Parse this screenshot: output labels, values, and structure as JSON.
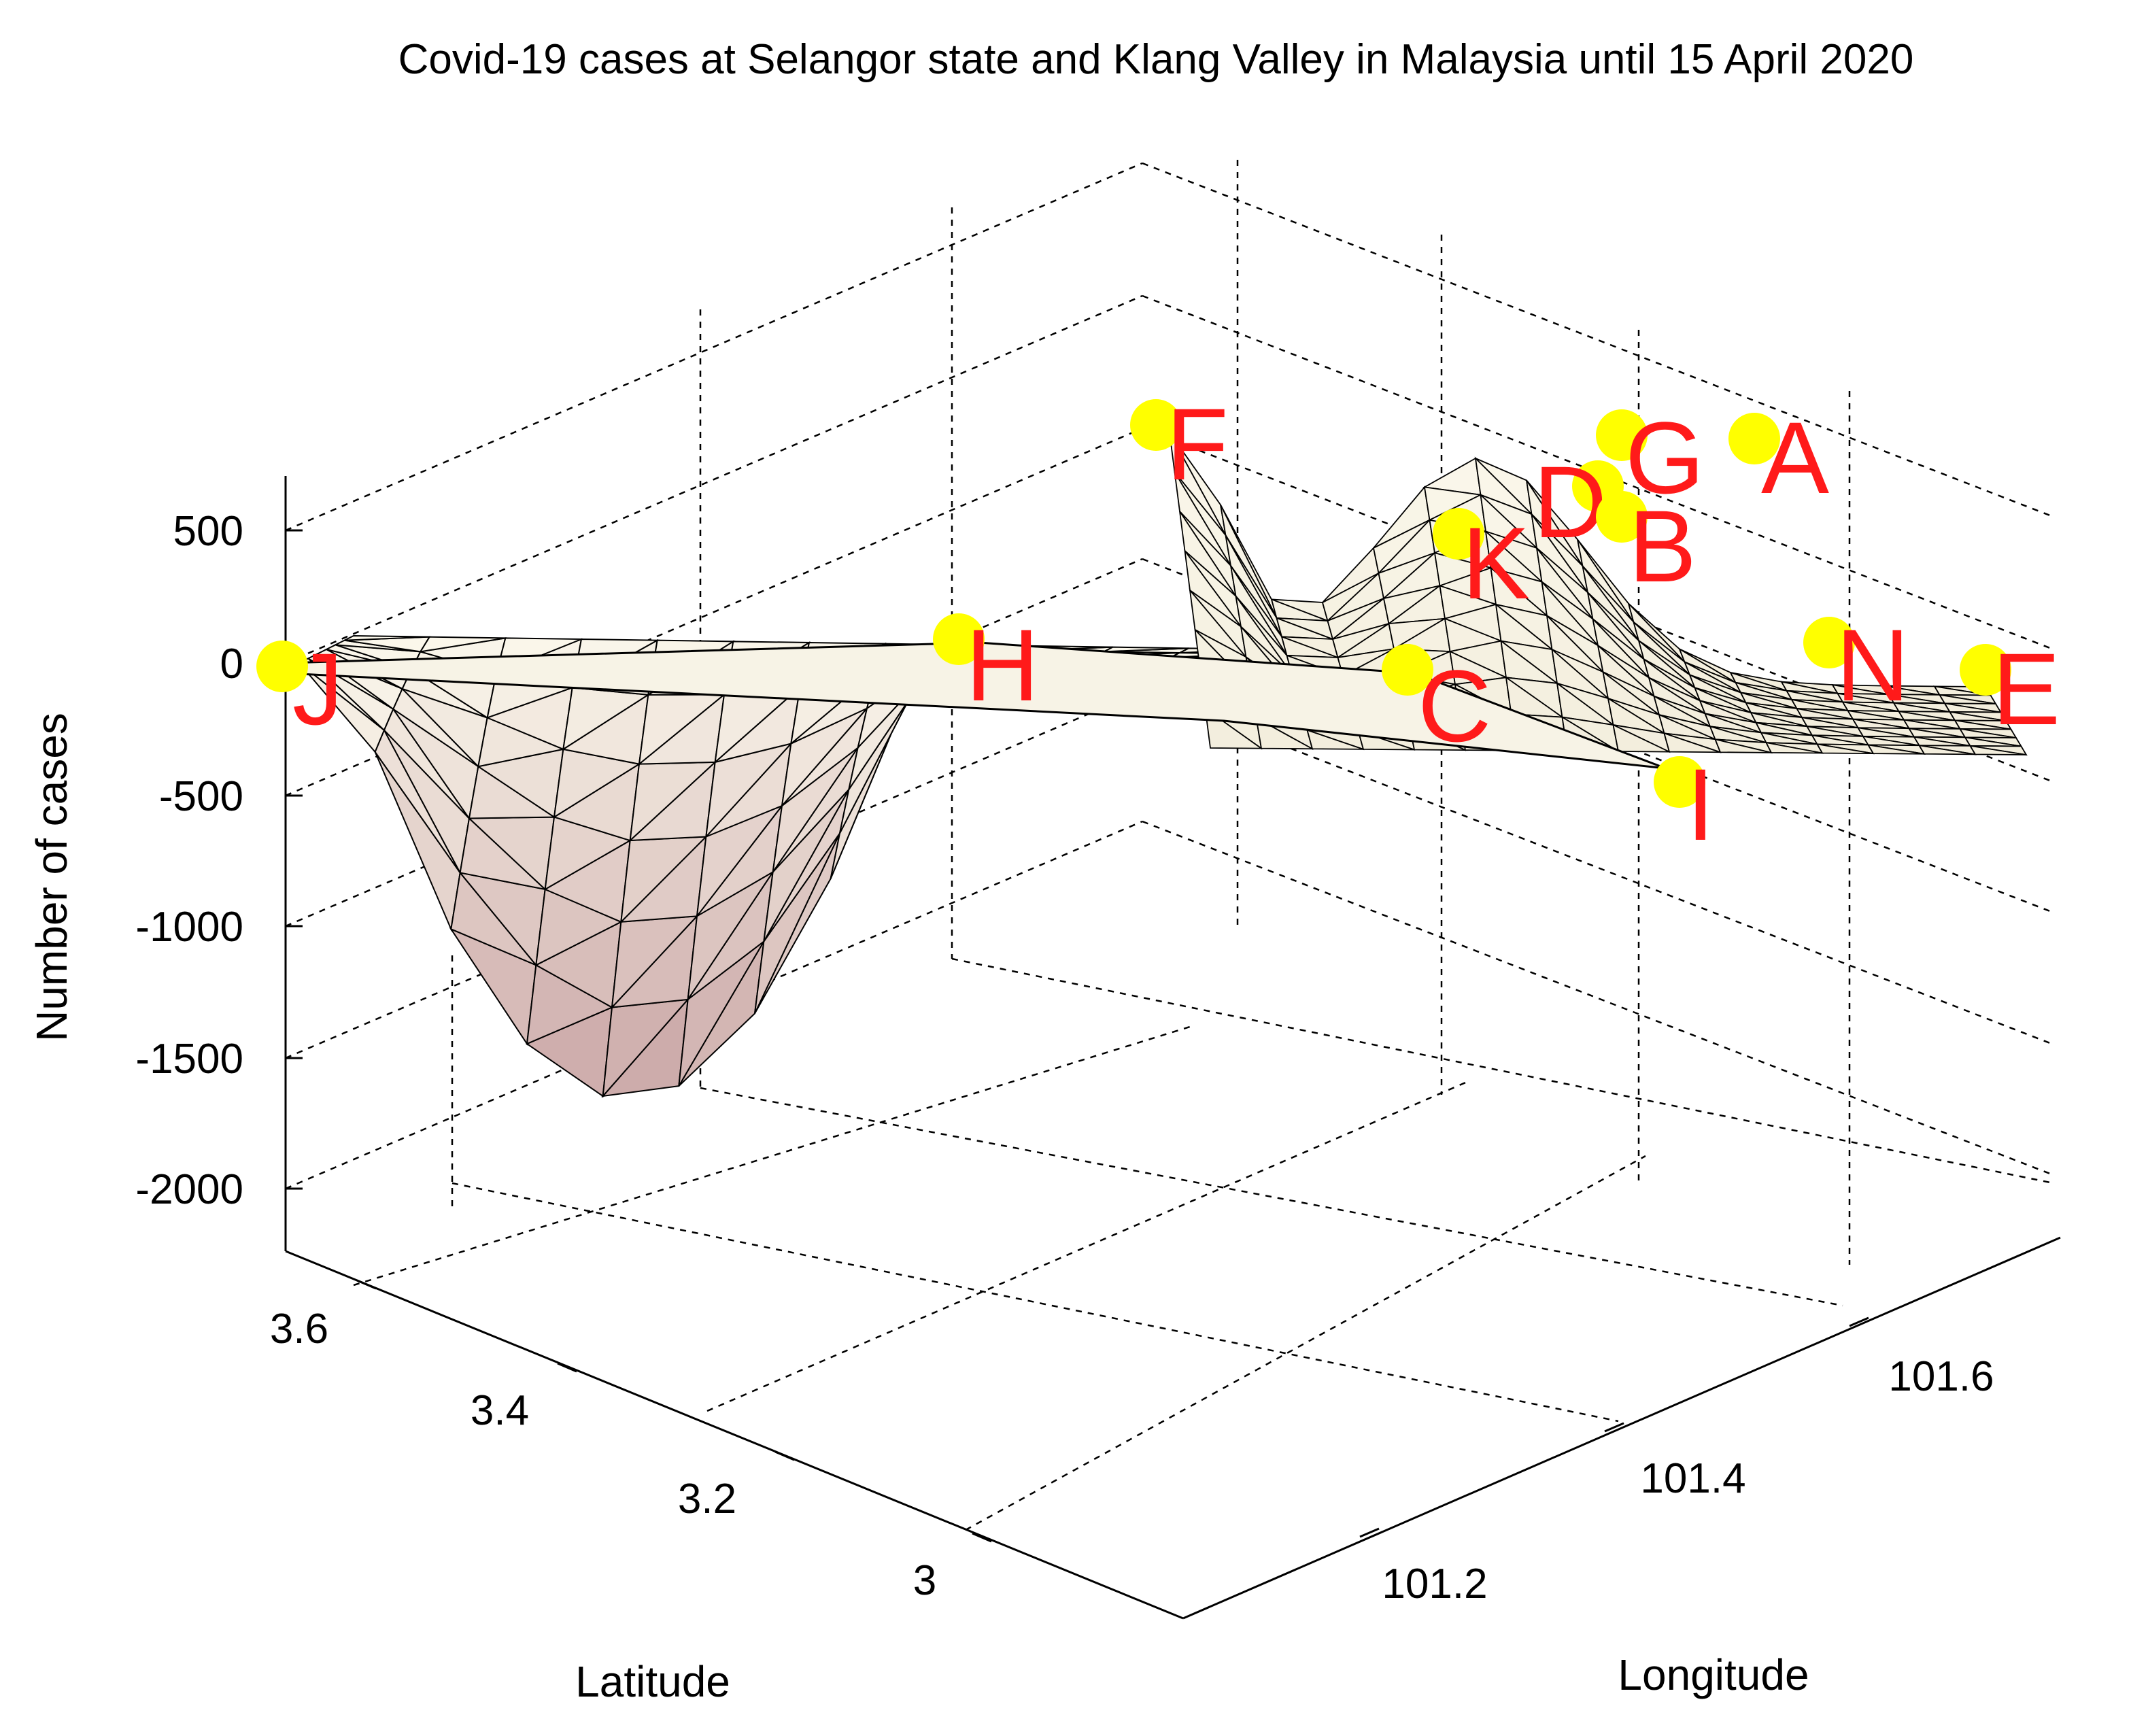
{
  "chart_data": {
    "type": "surface",
    "title": "Covid-19 cases at Selangor state and Klang Valley in Malaysia until 15 April 2020",
    "xlabel": "Latitude",
    "ylabel": "Longitude",
    "zlabel": "Number of cases",
    "x_ticks": [
      "3.6",
      "3.4",
      "3.2",
      "3"
    ],
    "y_ticks": [
      "101.2",
      "101.4",
      "101.6"
    ],
    "z_ticks": [
      "500",
      "0",
      "-500",
      "-1000",
      "-1500",
      "-2000"
    ],
    "zlim": [
      -2000,
      700
    ],
    "grid": true,
    "colors": {
      "surface_low": "#7a0000",
      "surface_high": "#fbf8ec",
      "marker": "#ffff00",
      "site_label": "#ff1a1a"
    },
    "sites": [
      {
        "label": "J",
        "cases": 0
      },
      {
        "label": "H",
        "cases": 40
      },
      {
        "label": "F",
        "cases": 580
      },
      {
        "label": "K",
        "cases": 300
      },
      {
        "label": "D",
        "cases": 420
      },
      {
        "label": "G",
        "cases": 560
      },
      {
        "label": "B",
        "cases": 380
      },
      {
        "label": "A",
        "cases": 560
      },
      {
        "label": "C",
        "cases": -30
      },
      {
        "label": "N",
        "cases": 60
      },
      {
        "label": "E",
        "cases": -40
      },
      {
        "label": "I",
        "cases": -420
      }
    ],
    "surface_minimum": -1650
  }
}
